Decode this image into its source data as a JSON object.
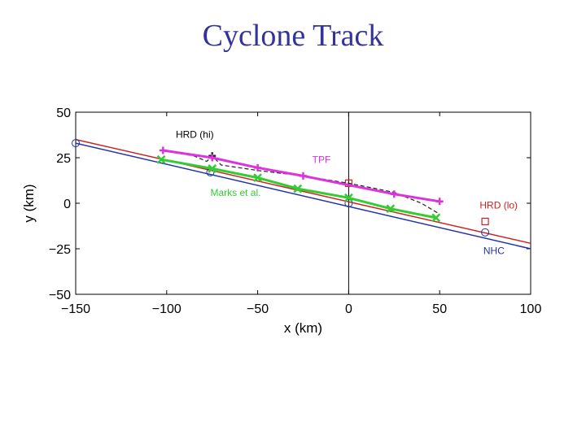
{
  "slide": {
    "title": "Cyclone Track"
  },
  "chart_data": {
    "type": "line",
    "title": "Cyclone Track",
    "xlabel": "x (km)",
    "ylabel": "y (km)",
    "xlim": [
      -150,
      100
    ],
    "ylim": [
      -50,
      50
    ],
    "xticks": [
      -150,
      -100,
      -50,
      0,
      50,
      100
    ],
    "yticks": [
      -50,
      -25,
      0,
      25,
      50
    ],
    "xtick_labels": [
      "−150",
      "−100",
      "−50",
      "0",
      "50",
      "100"
    ],
    "ytick_labels": [
      "−50",
      "−25",
      "0",
      "25",
      "50"
    ],
    "grid": false,
    "series": [
      {
        "name": "HRD (lo)",
        "color": "#cc2222",
        "marker": "square",
        "x": [
          -150,
          100
        ],
        "y": [
          35,
          -22
        ],
        "points": [
          [
            0,
            11
          ],
          [
            75,
            -10
          ]
        ]
      },
      {
        "name": "NHC",
        "color": "#2233aa",
        "marker": "circle",
        "x": [
          -150,
          100
        ],
        "y": [
          33,
          -25
        ],
        "points": [
          [
            -150,
            33
          ],
          [
            -76,
            17
          ],
          [
            0,
            0
          ],
          [
            75,
            -16
          ]
        ]
      },
      {
        "name": "HRD (hi)",
        "color": "#222222",
        "marker": "plus",
        "dashed": true,
        "x": [
          -103,
          -85,
          -78,
          -75,
          -70,
          -50,
          -25,
          0,
          10,
          25,
          40,
          50
        ],
        "y": [
          29,
          26,
          23,
          26,
          21,
          18,
          15,
          11,
          9,
          6,
          0,
          -6
        ],
        "points": [
          [
            -75,
            26
          ]
        ]
      },
      {
        "name": "TPF",
        "color": "#dd33dd",
        "marker": "plus",
        "x": [
          -102,
          -75,
          -50,
          -25,
          25,
          50
        ],
        "y": [
          29,
          25,
          19.5,
          15,
          5,
          1
        ],
        "points": [
          [
            -102,
            29
          ],
          [
            -75,
            25
          ],
          [
            -50,
            19.5
          ],
          [
            -25,
            15
          ],
          [
            25,
            5
          ],
          [
            50,
            1
          ]
        ]
      },
      {
        "name": "Marks et al.",
        "color": "#33cc33",
        "marker": "x",
        "x": [
          -103,
          -75,
          -50,
          -28,
          0,
          23,
          48
        ],
        "y": [
          24,
          19,
          14,
          8,
          3,
          -3,
          -8
        ],
        "points": [
          [
            -103,
            24
          ],
          [
            -75,
            19
          ],
          [
            -50,
            14
          ],
          [
            -28,
            8
          ],
          [
            0,
            3
          ],
          [
            23,
            -3
          ],
          [
            48,
            -8
          ]
        ]
      }
    ],
    "annotations": [
      {
        "text": "HRD (hi)",
        "color": "#000000",
        "x": -95,
        "y": 36
      },
      {
        "text": "TPF",
        "color": "#dd33dd",
        "x": -20,
        "y": 22
      },
      {
        "text": "Marks et al.",
        "color": "#33cc33",
        "x": -76,
        "y": 4
      },
      {
        "text": "HRD (lo)",
        "color": "#cc2222",
        "x": 72,
        "y": -3
      },
      {
        "text": "NHC",
        "color": "#2233aa",
        "x": 74,
        "y": -28
      }
    ]
  }
}
